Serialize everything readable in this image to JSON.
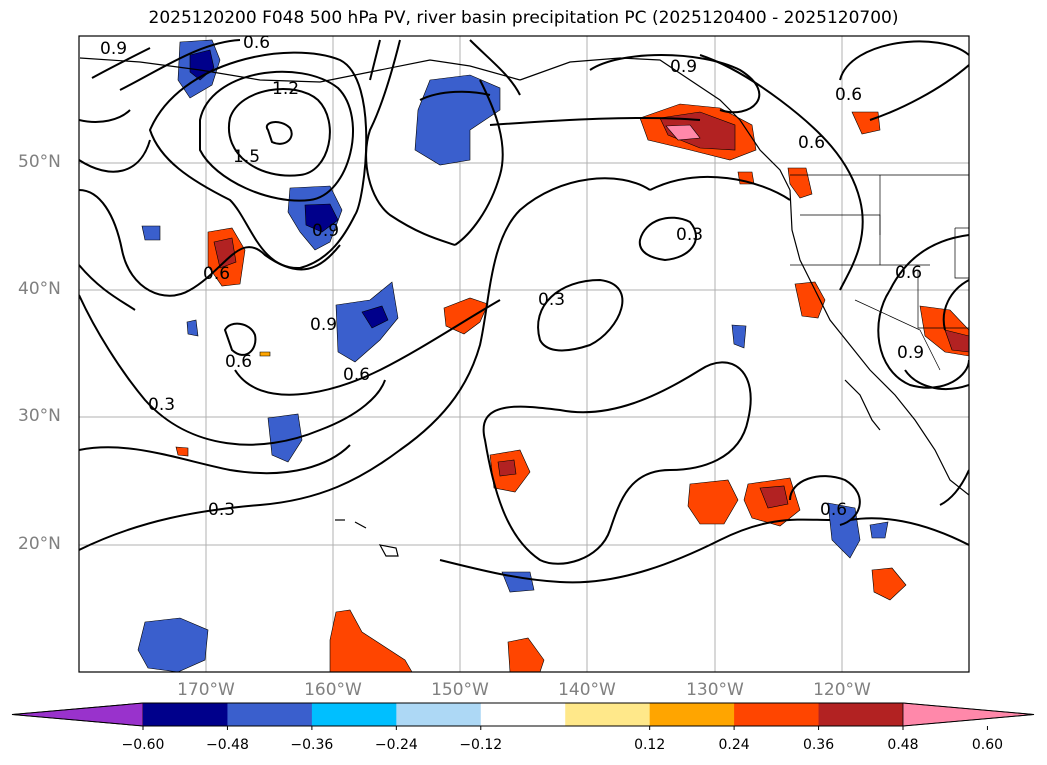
{
  "title": "2025120200 F048 500 hPa PV, river basin precipitation PC (2025120400 - 2025120700)",
  "lat_labels": [
    "50°N",
    "40°N",
    "30°N",
    "20°N"
  ],
  "lon_labels": [
    "170°W",
    "160°W",
    "150°W",
    "140°W",
    "130°W",
    "120°W"
  ],
  "colorbar": {
    "ticks": [
      "−0.60",
      "−0.48",
      "−0.36",
      "−0.24",
      "−0.12",
      "0.12",
      "0.24",
      "0.36",
      "0.48",
      "0.60"
    ],
    "colors": [
      "#9932cc",
      "#00008b",
      "#3a5fcd",
      "#00bfff",
      "#add8f5",
      "#ffffff",
      "#ffe88a",
      "#ffa500",
      "#ff4500",
      "#b22222",
      "#ff88aa"
    ]
  },
  "contour_labels": [
    "0.9",
    "0.6",
    "1.2",
    "1.5",
    "0.9",
    "0.6",
    "0.9",
    "0.6",
    "0.6",
    "0.3",
    "0.3",
    "0.3",
    "0.9",
    "0.6",
    "0.6",
    "0.3",
    "0.6",
    "0.9",
    "0.6"
  ]
}
